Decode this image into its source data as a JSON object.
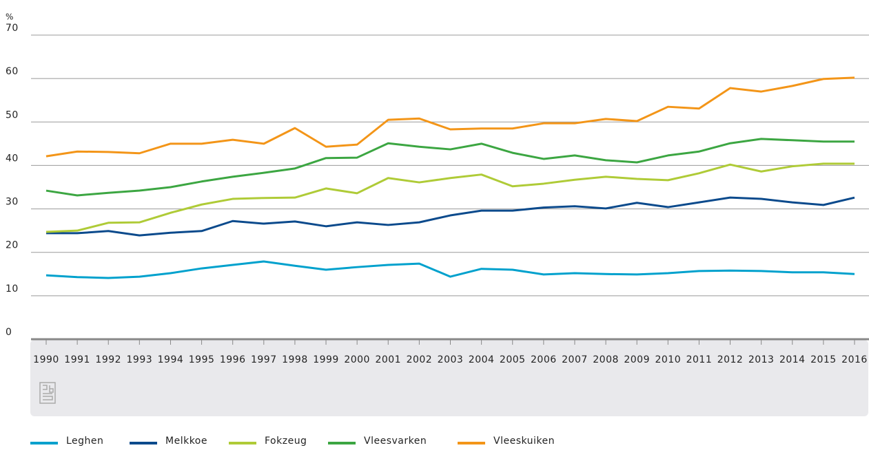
{
  "chart_data": {
    "type": "line",
    "y_unit": "%",
    "categories": [
      "1990",
      "1991",
      "1992",
      "1993",
      "1994",
      "1995",
      "1996",
      "1997",
      "1998",
      "1999",
      "2000",
      "2001",
      "2002",
      "2003",
      "2004",
      "2005",
      "2006",
      "2007",
      "2008",
      "2009",
      "2010",
      "2011",
      "2012",
      "2013",
      "2014",
      "2015",
      "2016"
    ],
    "ylim": [
      0,
      70
    ],
    "yticks": [
      0,
      10,
      20,
      30,
      40,
      50,
      60,
      70
    ],
    "grid": true,
    "legend": "bottom",
    "series": [
      {
        "name": "Leghen",
        "color": "#00a1cd",
        "values": [
          14.7,
          14.3,
          14.1,
          14.4,
          15.2,
          16.3,
          17.1,
          17.9,
          16.9,
          16.0,
          16.6,
          17.1,
          17.4,
          14.4,
          16.2,
          16.0,
          14.9,
          15.2,
          15.0,
          14.9,
          15.2,
          15.7,
          15.8,
          15.7,
          15.4,
          15.4,
          15.0
        ]
      },
      {
        "name": "Melkkoe",
        "color": "#0b4a8c",
        "values": [
          24.4,
          24.4,
          24.9,
          23.9,
          24.5,
          24.9,
          27.2,
          26.6,
          27.1,
          26.0,
          26.9,
          26.3,
          26.9,
          28.5,
          29.6,
          29.6,
          30.3,
          30.6,
          30.1,
          31.4,
          30.4,
          31.5,
          32.6,
          32.3,
          31.5,
          30.9,
          32.6
        ]
      },
      {
        "name": "Fokzeug",
        "color": "#afcb37",
        "values": [
          24.7,
          25.0,
          26.8,
          26.9,
          29.1,
          31.0,
          32.3,
          32.5,
          32.6,
          34.7,
          33.6,
          37.1,
          36.1,
          37.1,
          37.9,
          35.2,
          35.8,
          36.7,
          37.4,
          36.9,
          36.6,
          38.2,
          40.2,
          38.6,
          39.8,
          40.4,
          40.4
        ]
      },
      {
        "name": "Vleesvarken",
        "color": "#3ca642",
        "values": [
          34.2,
          33.1,
          33.7,
          34.2,
          35.0,
          36.3,
          37.4,
          38.3,
          39.3,
          41.7,
          41.8,
          45.1,
          44.3,
          43.7,
          45.0,
          42.9,
          41.5,
          42.3,
          41.2,
          40.7,
          42.3,
          43.2,
          45.1,
          46.1,
          45.8,
          45.5,
          45.5
        ]
      },
      {
        "name": "Vleeskuiken",
        "color": "#f39518",
        "values": [
          42.1,
          43.2,
          43.1,
          42.8,
          45.0,
          45.0,
          45.9,
          45.0,
          48.6,
          44.3,
          44.8,
          50.5,
          50.8,
          48.3,
          48.5,
          48.5,
          49.7,
          49.7,
          50.7,
          50.2,
          53.5,
          53.1,
          57.8,
          57.0,
          58.3,
          59.9,
          60.2
        ]
      }
    ]
  }
}
